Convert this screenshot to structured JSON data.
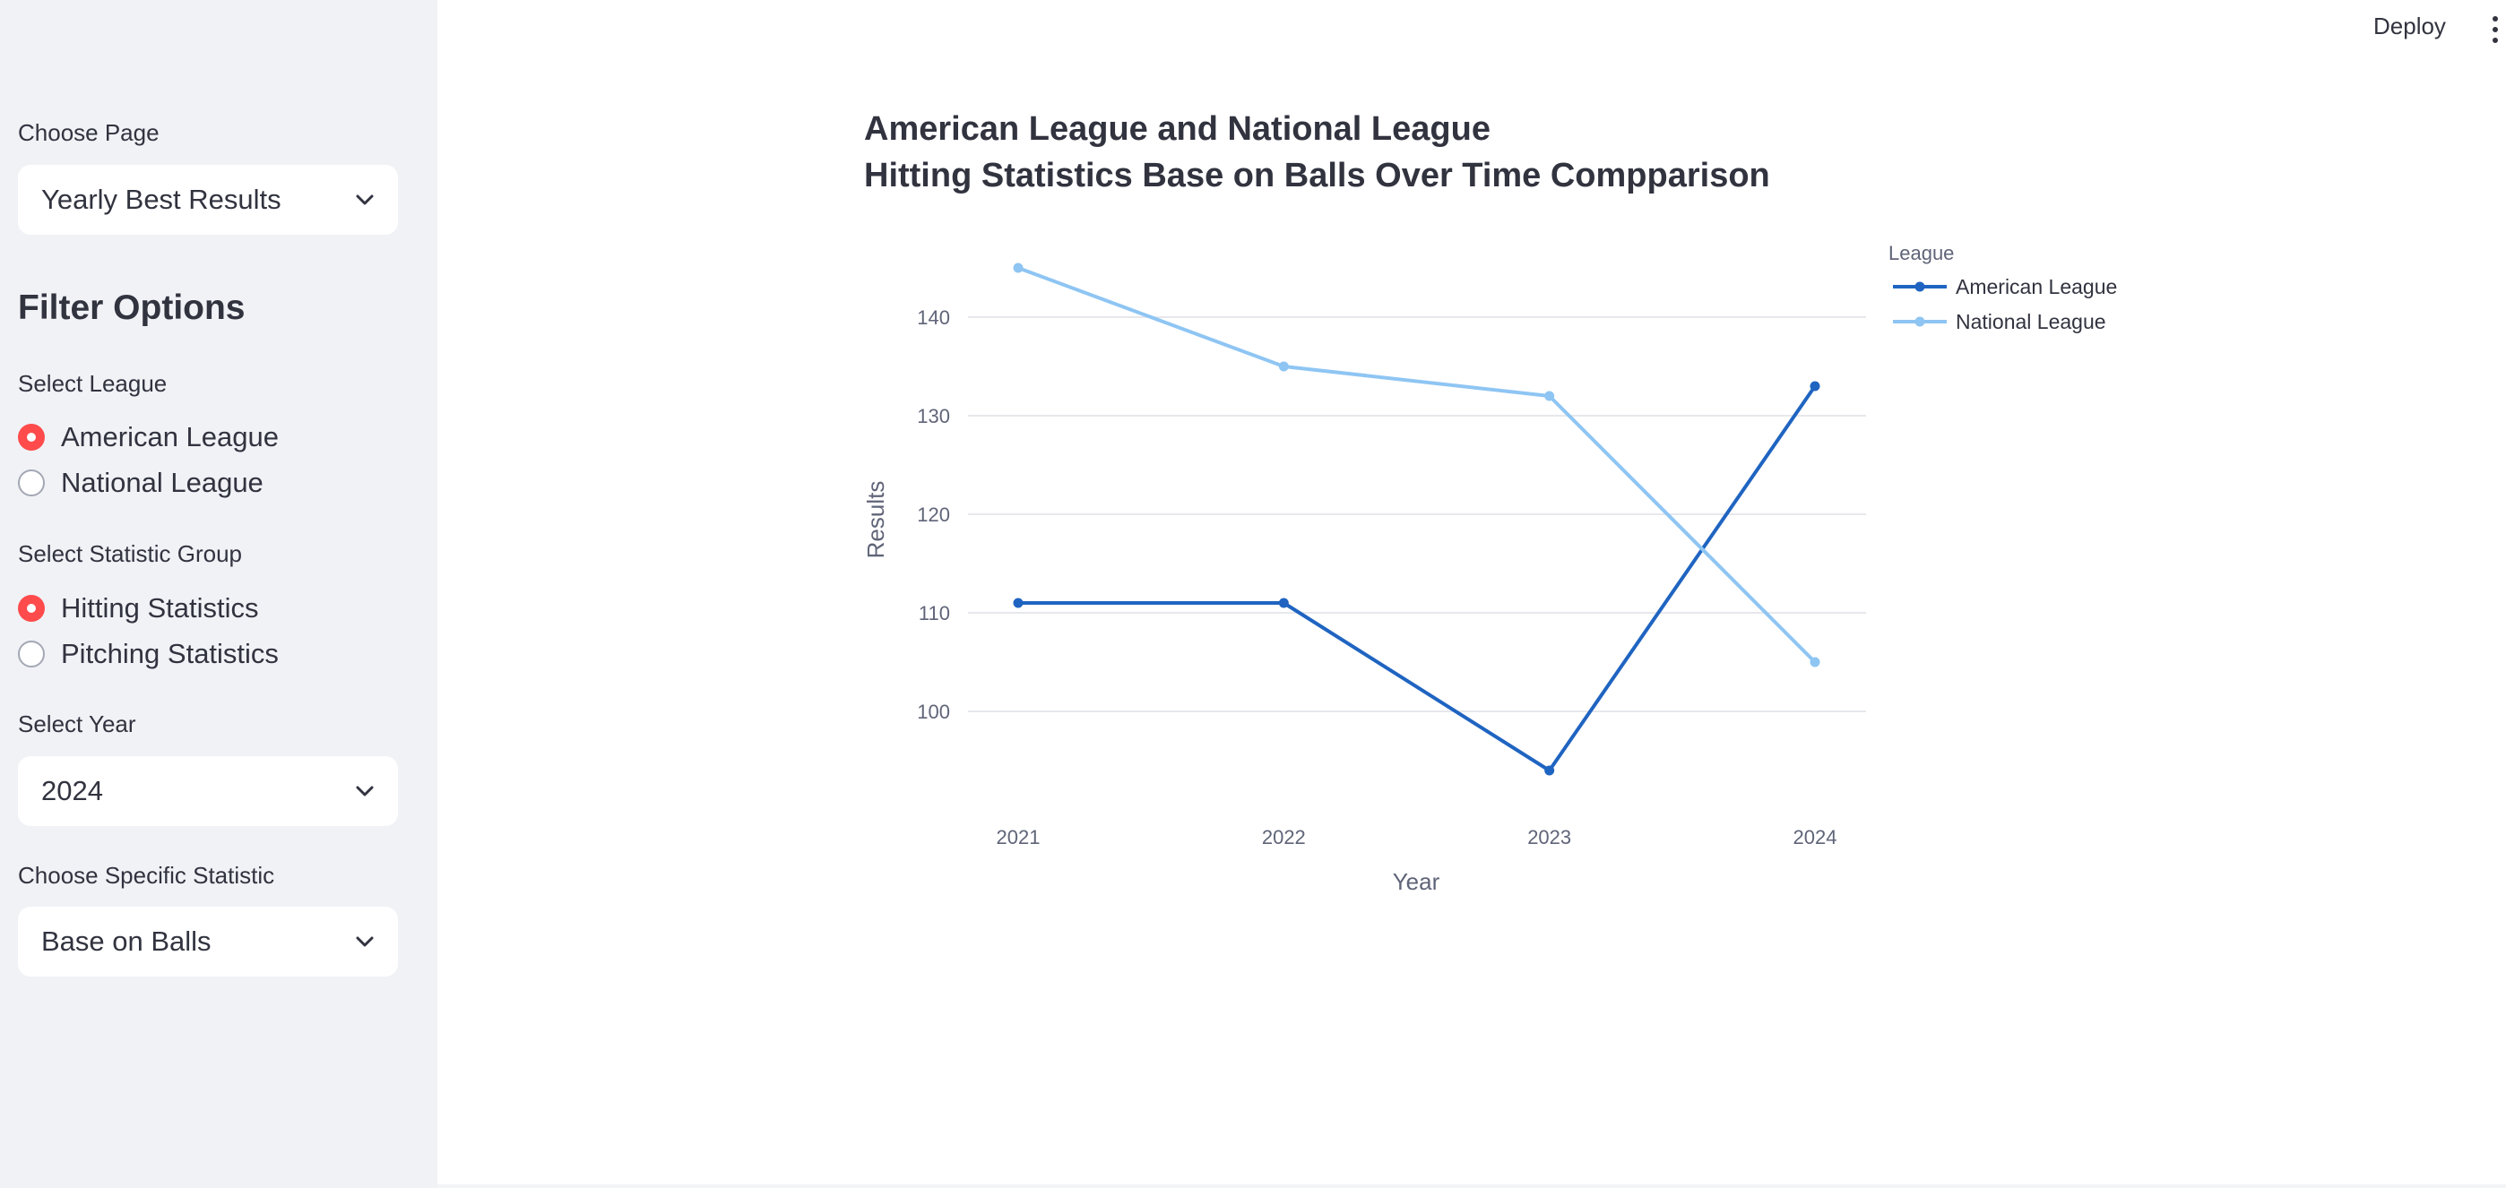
{
  "sidebar": {
    "choose_page_label": "Choose Page",
    "choose_page_value": "Yearly Best Results",
    "filter_title": "Filter Options",
    "league_label": "Select League",
    "league_options": [
      "American League",
      "National League"
    ],
    "league_selected": 0,
    "stat_group_label": "Select Statistic Group",
    "stat_group_options": [
      "Hitting Statistics",
      "Pitching Statistics"
    ],
    "stat_group_selected": 0,
    "year_label": "Select Year",
    "year_value": "2024",
    "stat_label": "Choose Specific Statistic",
    "stat_value": "Base on Balls"
  },
  "header": {
    "deploy_label": "Deploy"
  },
  "colors": {
    "accent": "#ff4b4b",
    "american_league": "#1f64c1",
    "national_league": "#8ec5f3"
  },
  "chart_data": {
    "type": "line",
    "title": "American League and National League",
    "subtitle": "Hitting Statistics Base on Balls Over Time Compparison",
    "xlabel": "Year",
    "ylabel": "Results",
    "categories": [
      "2021",
      "2022",
      "2023",
      "2024"
    ],
    "yticks": [
      100,
      110,
      120,
      130,
      140
    ],
    "ylim": [
      88,
      148
    ],
    "grid": true,
    "legend_title": "League",
    "legend_position": "top-right",
    "series": [
      {
        "name": "American League",
        "values": [
          111,
          111,
          94,
          133
        ]
      },
      {
        "name": "National League",
        "values": [
          145,
          135,
          132,
          105
        ]
      }
    ]
  }
}
